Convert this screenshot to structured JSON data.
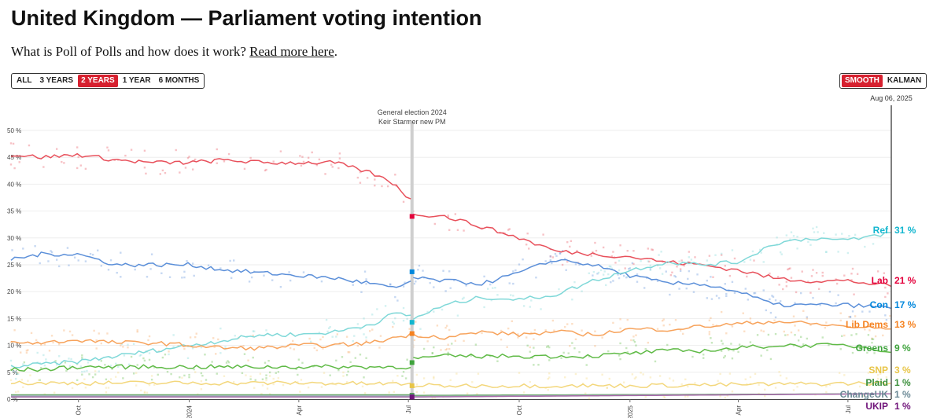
{
  "page": {
    "title": "United Kingdom — Parliament voting intention",
    "subtitle_text": "What is Poll of Polls and how does it work?",
    "subtitle_link": "Read more here"
  },
  "range_buttons": [
    {
      "label": "ALL",
      "active": false
    },
    {
      "label": "3 YEARS",
      "active": false
    },
    {
      "label": "2 YEARS",
      "active": true
    },
    {
      "label": "1 YEAR",
      "active": false
    },
    {
      "label": "6 MONTHS",
      "active": false
    }
  ],
  "mode_buttons": [
    {
      "label": "SMOOTH",
      "active": true
    },
    {
      "label": "KALMAN",
      "active": false
    }
  ],
  "chart_data": {
    "type": "line",
    "date_label": "Aug 06, 2025",
    "annotation": [
      "General election 2024",
      "Keir Starmer new PM"
    ],
    "x_range": [
      "2023-08-06",
      "2025-08-06"
    ],
    "election_date": "2024-07-04",
    "y_range": [
      0,
      50
    ],
    "y_ticks": [
      0,
      5,
      10,
      15,
      20,
      25,
      30,
      35,
      40,
      45,
      50
    ],
    "y_unit": " %",
    "x_ticks": [
      {
        "label": "Oct",
        "date": "2023-10-01"
      },
      {
        "label": "2024",
        "date": "2024-01-01"
      },
      {
        "label": "Apr",
        "date": "2024-04-01"
      },
      {
        "label": "Jul",
        "date": "2024-07-01"
      },
      {
        "label": "Oct",
        "date": "2024-10-01"
      },
      {
        "label": "2025",
        "date": "2025-01-01"
      },
      {
        "label": "Apr",
        "date": "2025-04-01"
      },
      {
        "label": "Jul",
        "date": "2025-07-01"
      }
    ],
    "series": [
      {
        "name": "Lab",
        "value_label": "21 %",
        "color": "#e4003b",
        "line": "#e8505b",
        "election_result": 34,
        "points": [
          [
            "2023-08-06",
            45.5
          ],
          [
            "2023-09-01",
            45
          ],
          [
            "2023-10-01",
            45.5
          ],
          [
            "2023-11-01",
            44.5
          ],
          [
            "2023-12-01",
            44
          ],
          [
            "2024-01-01",
            44
          ],
          [
            "2024-02-01",
            44.5
          ],
          [
            "2024-03-01",
            44
          ],
          [
            "2024-04-01",
            44
          ],
          [
            "2024-05-01",
            44
          ],
          [
            "2024-06-01",
            42
          ],
          [
            "2024-06-20",
            40
          ],
          [
            "2024-07-03",
            37
          ],
          [
            "2024-07-05",
            34.5
          ],
          [
            "2024-08-01",
            34
          ],
          [
            "2024-09-01",
            32
          ],
          [
            "2024-10-01",
            30
          ],
          [
            "2024-11-01",
            27.5
          ],
          [
            "2024-12-01",
            27
          ],
          [
            "2025-01-01",
            26.5
          ],
          [
            "2025-02-01",
            25.5
          ],
          [
            "2025-03-01",
            25
          ],
          [
            "2025-04-01",
            24
          ],
          [
            "2025-05-01",
            22.5
          ],
          [
            "2025-06-01",
            22
          ],
          [
            "2025-07-01",
            22
          ],
          [
            "2025-08-06",
            21
          ]
        ]
      },
      {
        "name": "Con",
        "value_label": "17 %",
        "color": "#0087dc",
        "line": "#5b8fd9",
        "election_result": 23.7,
        "points": [
          [
            "2023-08-06",
            26
          ],
          [
            "2023-09-01",
            27
          ],
          [
            "2023-10-01",
            27
          ],
          [
            "2023-11-01",
            25
          ],
          [
            "2023-12-01",
            25
          ],
          [
            "2024-01-01",
            25
          ],
          [
            "2024-02-01",
            24
          ],
          [
            "2024-03-01",
            23.5
          ],
          [
            "2024-04-01",
            23
          ],
          [
            "2024-05-01",
            22.5
          ],
          [
            "2024-06-01",
            21.5
          ],
          [
            "2024-06-20",
            20.5
          ],
          [
            "2024-07-03",
            22
          ],
          [
            "2024-07-05",
            22.5
          ],
          [
            "2024-08-01",
            22
          ],
          [
            "2024-09-01",
            21.5
          ],
          [
            "2024-10-01",
            23.5
          ],
          [
            "2024-11-01",
            26
          ],
          [
            "2024-12-01",
            25
          ],
          [
            "2025-01-01",
            23
          ],
          [
            "2025-02-01",
            21.5
          ],
          [
            "2025-03-01",
            21.5
          ],
          [
            "2025-04-01",
            20
          ],
          [
            "2025-05-01",
            17.5
          ],
          [
            "2025-06-01",
            17.5
          ],
          [
            "2025-07-01",
            17.5
          ],
          [
            "2025-08-06",
            17
          ]
        ]
      },
      {
        "name": "Ref",
        "value_label": "31 %",
        "color": "#12b6cf",
        "line": "#7fd8d8",
        "election_result": 14.3,
        "points": [
          [
            "2023-08-06",
            6
          ],
          [
            "2023-09-01",
            6.5
          ],
          [
            "2023-10-01",
            7
          ],
          [
            "2023-11-01",
            8
          ],
          [
            "2023-12-01",
            9
          ],
          [
            "2024-01-01",
            10
          ],
          [
            "2024-02-01",
            11
          ],
          [
            "2024-03-01",
            12
          ],
          [
            "2024-04-01",
            12
          ],
          [
            "2024-05-01",
            12.5
          ],
          [
            "2024-06-01",
            14
          ],
          [
            "2024-06-20",
            16
          ],
          [
            "2024-07-03",
            15.5
          ],
          [
            "2024-07-05",
            15
          ],
          [
            "2024-08-01",
            17.5
          ],
          [
            "2024-09-01",
            19
          ],
          [
            "2024-10-01",
            18.5
          ],
          [
            "2024-11-01",
            19.5
          ],
          [
            "2024-12-01",
            22
          ],
          [
            "2025-01-01",
            24
          ],
          [
            "2025-02-01",
            25.5
          ],
          [
            "2025-03-01",
            25
          ],
          [
            "2025-04-01",
            25.5
          ],
          [
            "2025-05-01",
            29
          ],
          [
            "2025-06-01",
            30
          ],
          [
            "2025-07-01",
            29.5
          ],
          [
            "2025-08-06",
            31
          ]
        ]
      },
      {
        "name": "Lib Dems",
        "value_label": "13 %",
        "color": "#f58220",
        "line": "#f7a35c",
        "election_result": 12.2,
        "points": [
          [
            "2023-08-06",
            10.5
          ],
          [
            "2023-09-01",
            10.5
          ],
          [
            "2023-10-01",
            11
          ],
          [
            "2023-11-01",
            10.5
          ],
          [
            "2023-12-01",
            10.5
          ],
          [
            "2024-01-01",
            10
          ],
          [
            "2024-02-01",
            9.5
          ],
          [
            "2024-03-01",
            9.5
          ],
          [
            "2024-04-01",
            10
          ],
          [
            "2024-05-01",
            10
          ],
          [
            "2024-06-01",
            10.5
          ],
          [
            "2024-06-20",
            11.5
          ],
          [
            "2024-07-03",
            12
          ],
          [
            "2024-07-05",
            12
          ],
          [
            "2024-08-01",
            11.5
          ],
          [
            "2024-09-01",
            12.5
          ],
          [
            "2024-10-01",
            12
          ],
          [
            "2024-11-01",
            12.5
          ],
          [
            "2024-12-01",
            12
          ],
          [
            "2025-01-01",
            13
          ],
          [
            "2025-02-01",
            13
          ],
          [
            "2025-03-01",
            13.5
          ],
          [
            "2025-04-01",
            14
          ],
          [
            "2025-05-01",
            14.5
          ],
          [
            "2025-06-01",
            14
          ],
          [
            "2025-07-01",
            13.5
          ],
          [
            "2025-08-06",
            13
          ]
        ]
      },
      {
        "name": "Greens",
        "value_label": "9 %",
        "color": "#3ea33c",
        "line": "#5fba46",
        "election_result": 6.8,
        "points": [
          [
            "2023-08-06",
            5.5
          ],
          [
            "2023-09-01",
            5.5
          ],
          [
            "2023-10-01",
            6
          ],
          [
            "2023-11-01",
            6
          ],
          [
            "2023-12-01",
            6
          ],
          [
            "2024-01-01",
            6
          ],
          [
            "2024-02-01",
            6
          ],
          [
            "2024-03-01",
            6
          ],
          [
            "2024-04-01",
            6
          ],
          [
            "2024-05-01",
            6
          ],
          [
            "2024-06-01",
            6
          ],
          [
            "2024-06-20",
            6
          ],
          [
            "2024-07-03",
            6
          ],
          [
            "2024-07-05",
            7.5
          ],
          [
            "2024-08-01",
            8
          ],
          [
            "2024-09-01",
            8
          ],
          [
            "2024-10-01",
            8
          ],
          [
            "2024-11-01",
            8
          ],
          [
            "2024-12-01",
            8
          ],
          [
            "2025-01-01",
            8.5
          ],
          [
            "2025-02-01",
            9
          ],
          [
            "2025-03-01",
            9
          ],
          [
            "2025-04-01",
            9.5
          ],
          [
            "2025-05-01",
            10
          ],
          [
            "2025-06-01",
            10
          ],
          [
            "2025-07-01",
            10
          ],
          [
            "2025-08-06",
            9
          ]
        ]
      },
      {
        "name": "SNP",
        "value_label": "3 %",
        "color": "#e8c547",
        "line": "#f3d77c",
        "election_result": 2.5,
        "points": [
          [
            "2023-08-06",
            3
          ],
          [
            "2023-10-01",
            3
          ],
          [
            "2024-01-01",
            3
          ],
          [
            "2024-04-01",
            3
          ],
          [
            "2024-07-03",
            2.8
          ],
          [
            "2024-07-05",
            2.5
          ],
          [
            "2024-10-01",
            2.5
          ],
          [
            "2025-01-01",
            2.5
          ],
          [
            "2025-04-01",
            2.7
          ],
          [
            "2025-08-06",
            3
          ]
        ]
      },
      {
        "name": "Plaid",
        "value_label": "1 %",
        "color": "#3b8f3b",
        "line": "#6aa86a",
        "election_result": 0.7,
        "points": [
          [
            "2023-08-06",
            0.8
          ],
          [
            "2024-07-03",
            0.8
          ],
          [
            "2024-07-05",
            0.7
          ],
          [
            "2025-08-06",
            1
          ]
        ]
      },
      {
        "name": "ChangeUK",
        "value_label": "1 %",
        "color": "#6c8a96",
        "line": "#9db0b8",
        "election_result": 0.5,
        "points": [
          [
            "2023-08-06",
            0.6
          ],
          [
            "2024-07-03",
            0.6
          ],
          [
            "2024-07-05",
            0.5
          ],
          [
            "2025-08-06",
            1
          ]
        ]
      },
      {
        "name": "UKIP",
        "value_label": "1 %",
        "color": "#70147a",
        "line": "#a76aa9",
        "election_result": 0.4,
        "points": [
          [
            "2023-08-06",
            0.4
          ],
          [
            "2024-07-03",
            0.4
          ],
          [
            "2024-07-05",
            0.4
          ],
          [
            "2025-08-06",
            1
          ]
        ]
      }
    ]
  }
}
